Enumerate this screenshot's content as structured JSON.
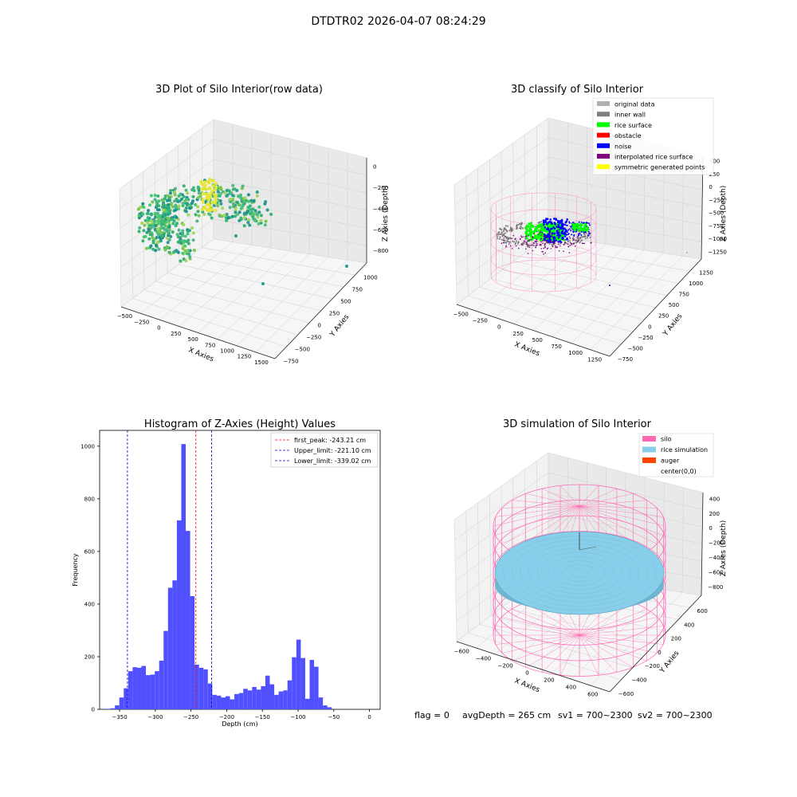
{
  "figure": {
    "title": "DTDTR02 2026-04-07 08:24:29",
    "status": {
      "flag": "flag = 0",
      "avg_depth": "avgDepth = 265 cm",
      "sv1": "sv1 = 700~2300",
      "sv2": "sv2 = 700~2300"
    }
  },
  "colors": {
    "hist_bar": "#5050ff",
    "peak_line": "#ff0000",
    "limit_line": "#0000cc",
    "original": "#b0b0b0",
    "inner_wall": "#808080",
    "rice_surface": "#00ff00",
    "obstacle": "#ff0000",
    "noise": "#0000ff",
    "interpolated": "#800080",
    "symmetric": "#ffff00",
    "silo": "#ff69b4",
    "rice_sim": "#87ceeb",
    "auger": "#ff4500"
  },
  "chart_data": [
    {
      "type": "scatter",
      "subtype": "3d",
      "title": "3D Plot of Silo Interior(row data)",
      "xlabel": "X Axies",
      "ylabel": "Y Axies",
      "zlabel": "Z Axies (Depth)",
      "x_ticks": [
        "−500",
        "−250",
        "0",
        "250",
        "500",
        "750",
        "1000",
        "1250",
        "1500"
      ],
      "y_ticks": [
        "−750",
        "−500",
        "−250",
        "0",
        "250",
        "500",
        "750",
        "1000"
      ],
      "z_ticks": [
        "0",
        "−200",
        "−400",
        "−600",
        "−800"
      ],
      "grid": true
    },
    {
      "type": "scatter",
      "subtype": "3d",
      "title": "3D classify of Silo Interior",
      "xlabel": "X Axies",
      "ylabel": "Y Axies",
      "zlabel": "Z Axies (Depth)",
      "x_ticks": [
        "−500",
        "−250",
        "0",
        "250",
        "500",
        "750",
        "1000",
        "1250"
      ],
      "y_ticks": [
        "−750",
        "−500",
        "−250",
        "0",
        "250",
        "500",
        "750",
        "1000",
        "1250"
      ],
      "z_ticks": [
        "500",
        "250",
        "0",
        "−250",
        "−500",
        "−750",
        "−1000",
        "−1250"
      ],
      "legend_position": "top-right",
      "legend": [
        {
          "label": "original data",
          "color_key": "original"
        },
        {
          "label": "inner wall",
          "color_key": "inner_wall"
        },
        {
          "label": "rice surface",
          "color_key": "rice_surface"
        },
        {
          "label": "obstacle",
          "color_key": "obstacle"
        },
        {
          "label": "noise",
          "color_key": "noise"
        },
        {
          "label": "interpolated rice surface",
          "color_key": "interpolated"
        },
        {
          "label": "symmetric generated points",
          "color_key": "symmetric"
        }
      ],
      "grid": true
    },
    {
      "type": "bar",
      "subtype": "histogram",
      "title": "Histogram of Z-Axies (Height) Values",
      "xlabel": "Depth (cm)",
      "ylabel": "Frequency",
      "xlim": [
        -378,
        15
      ],
      "ylim": [
        0,
        1060
      ],
      "x_ticks": [
        -350,
        -300,
        -250,
        -200,
        -150,
        -100,
        -50,
        0
      ],
      "y_ticks": [
        0,
        200,
        400,
        600,
        800,
        1000
      ],
      "bin_start": -369,
      "bin_width": 6.2,
      "values": [
        2,
        4,
        15,
        45,
        80,
        145,
        160,
        158,
        165,
        130,
        132,
        145,
        185,
        298,
        462,
        490,
        718,
        1008,
        678,
        430,
        170,
        158,
        152,
        98,
        55,
        52,
        45,
        50,
        38,
        58,
        62,
        78,
        72,
        85,
        75,
        88,
        128,
        95,
        55,
        68,
        72,
        110,
        198,
        265,
        195,
        40,
        188,
        162,
        45,
        15,
        8
      ],
      "ref_lines": [
        {
          "label": "first_peak: -243.21 cm",
          "x": -243.21,
          "color_key": "peak_line"
        },
        {
          "label": "Upper_limit: -221.10 cm",
          "x": -221.1,
          "color_key": "limit_line"
        },
        {
          "label": "Lower_limit: -339.02 cm",
          "x": -339.02,
          "color_key": "limit_line"
        }
      ],
      "legend_position": "top-right",
      "grid": false
    },
    {
      "type": "scatter",
      "subtype": "3d",
      "title": "3D simulation of Silo Interior",
      "xlabel": "X Axies",
      "ylabel": "Y Axies",
      "zlabel": "Z Axies (Depth)",
      "x_ticks": [
        "−600",
        "−400",
        "−200",
        "0",
        "200",
        "400",
        "600"
      ],
      "y_ticks": [
        "−600",
        "−400",
        "−200",
        "0",
        "200",
        "400",
        "600"
      ],
      "z_ticks": [
        "400",
        "200",
        "0",
        "−200",
        "−400",
        "−600",
        "−800"
      ],
      "legend_position": "top-right",
      "legend": [
        {
          "label": "silo",
          "color_key": "silo"
        },
        {
          "label": "rice simulation",
          "color_key": "rice_sim"
        },
        {
          "label": "auger",
          "color_key": "auger"
        },
        {
          "label": "center(0,0)",
          "color_key": ""
        }
      ],
      "grid": true
    }
  ]
}
